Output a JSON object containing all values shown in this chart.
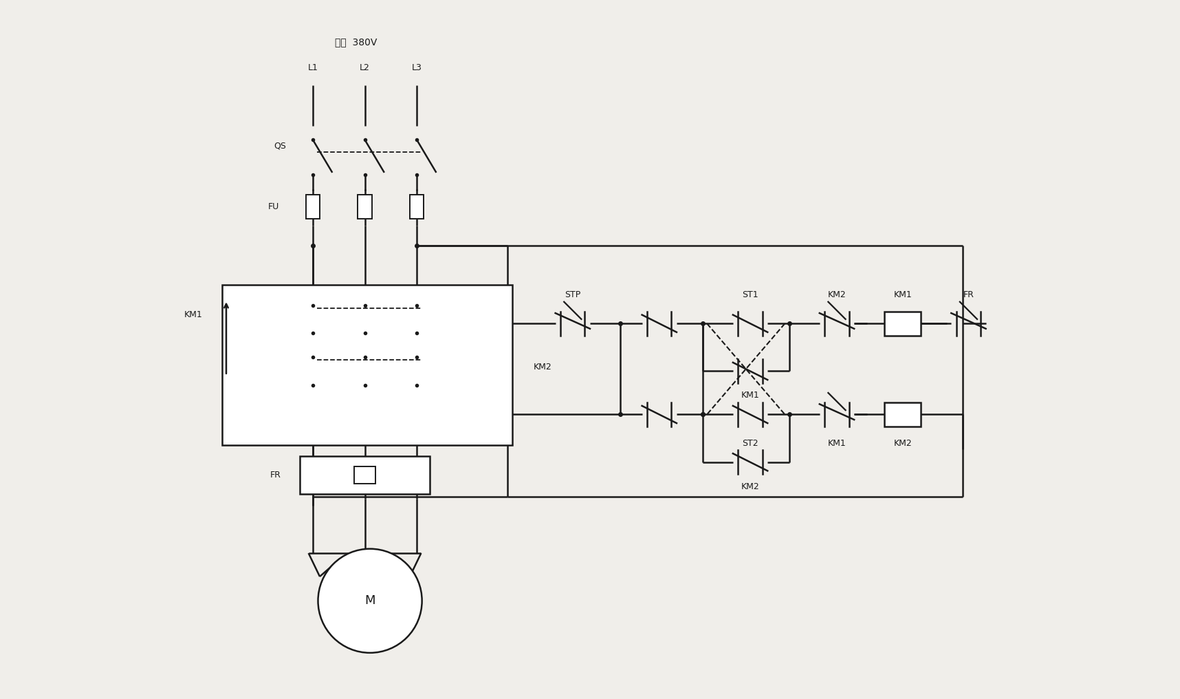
{
  "bg_color": "#f0eeea",
  "line_color": "#1a1a1a",
  "figsize": [
    17.16,
    10.16
  ],
  "dpi": 100,
  "title_text": "交流  380V",
  "L1": "L1",
  "L2": "L2",
  "L3": "L3"
}
